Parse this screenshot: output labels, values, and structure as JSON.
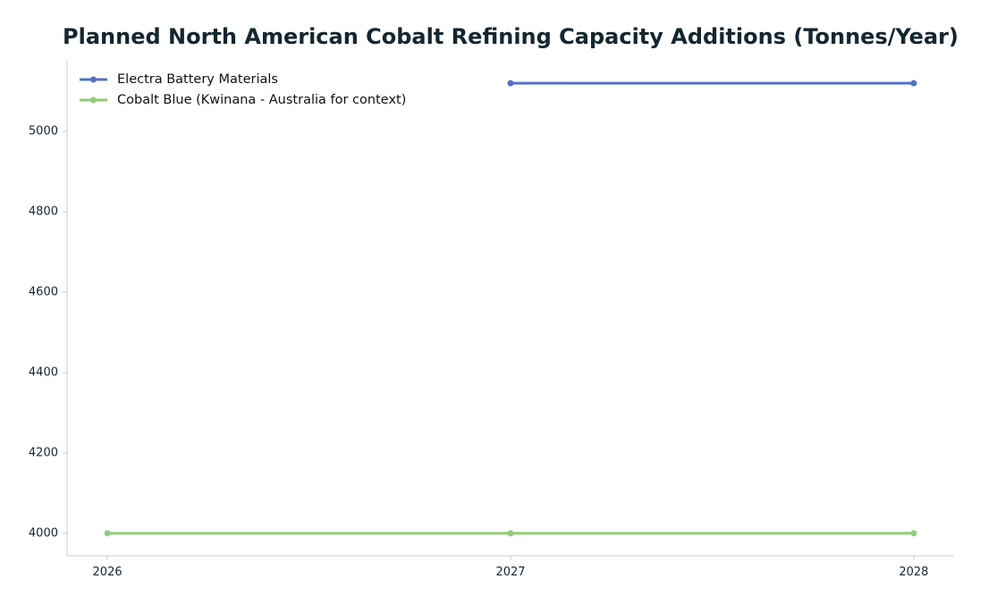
{
  "chart_data": {
    "type": "line",
    "title": "Planned North American Cobalt Refining Capacity Additions (Tonnes/Year)",
    "xlabel": "",
    "ylabel": "",
    "x": [
      2026,
      2027,
      2028
    ],
    "x_tick_labels": [
      "2026",
      "2027",
      "2028"
    ],
    "xlim": [
      2025.9,
      2028.1
    ],
    "y_ticks": [
      4000,
      4200,
      4400,
      4600,
      4800,
      5000
    ],
    "y_tick_labels": [
      "4000",
      "4200",
      "4400",
      "4600",
      "4800",
      "5000"
    ],
    "ylim": [
      3944,
      5176
    ],
    "grid": false,
    "legend_position": "top-left",
    "series": [
      {
        "name": "Electra Battery Materials",
        "color": "#5470c6",
        "x": [
          2027,
          2028
        ],
        "values": [
          5120,
          5120
        ]
      },
      {
        "name": "Cobalt Blue (Kwinana - Australia for context)",
        "color": "#91cc75",
        "x": [
          2026,
          2027,
          2028
        ],
        "values": [
          4000,
          4000,
          4000
        ]
      }
    ]
  }
}
